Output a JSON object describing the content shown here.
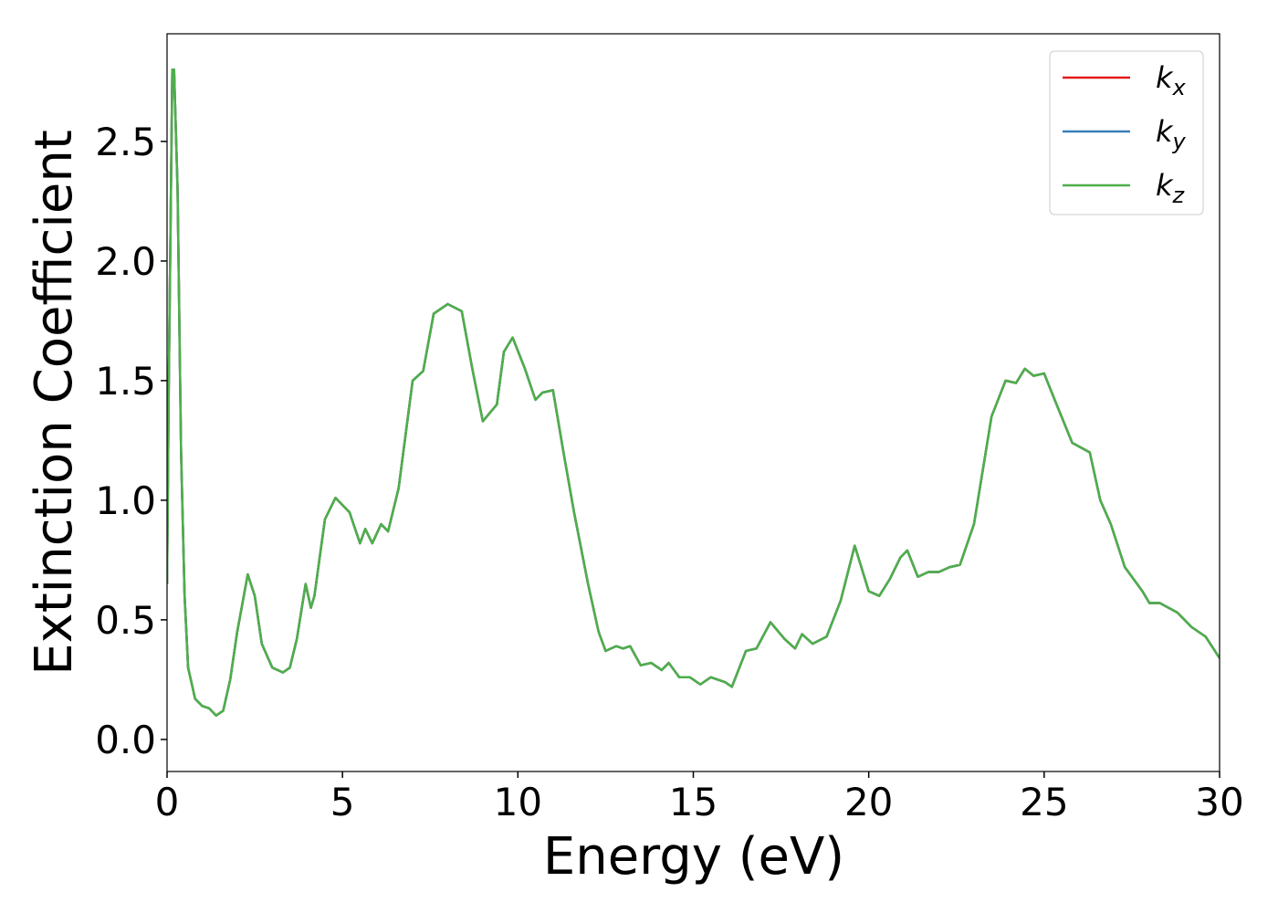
{
  "chart_data": {
    "type": "line",
    "xlabel": "Energy (eV)",
    "ylabel": "Extinction Coefficient",
    "x": [
      0,
      0.05,
      0.15,
      0.2,
      0.3,
      0.4,
      0.5,
      0.6,
      0.8,
      1.0,
      1.2,
      1.4,
      1.6,
      1.8,
      2.0,
      2.3,
      2.5,
      2.7,
      3.0,
      3.3,
      3.5,
      3.7,
      3.95,
      4.1,
      4.2,
      4.5,
      4.8,
      5.2,
      5.5,
      5.65,
      5.85,
      6.1,
      6.3,
      6.6,
      7.0,
      7.3,
      7.6,
      8.0,
      8.4,
      8.7,
      9.0,
      9.4,
      9.6,
      9.85,
      10.2,
      10.5,
      10.7,
      11.0,
      11.3,
      11.6,
      12.0,
      12.3,
      12.5,
      12.8,
      13.0,
      13.2,
      13.5,
      13.8,
      14.1,
      14.3,
      14.6,
      14.9,
      15.2,
      15.5,
      15.9,
      16.1,
      16.5,
      16.8,
      17.2,
      17.6,
      17.9,
      18.1,
      18.4,
      18.8,
      19.2,
      19.6,
      20.0,
      20.3,
      20.6,
      20.9,
      21.1,
      21.4,
      21.7,
      22.0,
      22.3,
      22.6,
      23.0,
      23.5,
      23.9,
      24.2,
      24.45,
      24.7,
      25.0,
      25.3,
      25.8,
      26.3,
      26.6,
      26.9,
      27.3,
      27.8,
      28.0,
      28.3,
      28.8,
      29.2,
      29.6,
      30.0
    ],
    "series": [
      {
        "name": "kx",
        "color": "#e41a1c",
        "values": [
          0.65,
          1.5,
          2.8,
          2.8,
          2.3,
          1.2,
          0.6,
          0.3,
          0.17,
          0.14,
          0.13,
          0.1,
          0.12,
          0.25,
          0.45,
          0.69,
          0.6,
          0.4,
          0.3,
          0.28,
          0.3,
          0.42,
          0.65,
          0.55,
          0.6,
          0.92,
          1.01,
          0.95,
          0.82,
          0.88,
          0.82,
          0.9,
          0.87,
          1.05,
          1.5,
          1.54,
          1.78,
          1.82,
          1.79,
          1.55,
          1.33,
          1.4,
          1.62,
          1.68,
          1.55,
          1.42,
          1.45,
          1.46,
          1.2,
          0.95,
          0.65,
          0.45,
          0.37,
          0.39,
          0.38,
          0.39,
          0.31,
          0.32,
          0.29,
          0.32,
          0.26,
          0.26,
          0.23,
          0.26,
          0.24,
          0.22,
          0.37,
          0.38,
          0.49,
          0.42,
          0.38,
          0.44,
          0.4,
          0.43,
          0.58,
          0.81,
          0.62,
          0.6,
          0.67,
          0.76,
          0.79,
          0.68,
          0.7,
          0.7,
          0.72,
          0.73,
          0.9,
          1.35,
          1.5,
          1.49,
          1.55,
          1.52,
          1.53,
          1.42,
          1.24,
          1.2,
          1.0,
          0.9,
          0.72,
          0.62,
          0.57,
          0.57,
          0.53,
          0.47,
          0.43,
          0.34
        ]
      },
      {
        "name": "ky",
        "color": "#377eb8",
        "values": [
          0.65,
          1.5,
          2.8,
          2.8,
          2.3,
          1.2,
          0.6,
          0.3,
          0.17,
          0.14,
          0.13,
          0.1,
          0.12,
          0.25,
          0.45,
          0.69,
          0.6,
          0.4,
          0.3,
          0.28,
          0.3,
          0.42,
          0.65,
          0.55,
          0.6,
          0.92,
          1.01,
          0.95,
          0.82,
          0.88,
          0.82,
          0.9,
          0.87,
          1.05,
          1.5,
          1.54,
          1.78,
          1.82,
          1.79,
          1.55,
          1.33,
          1.4,
          1.62,
          1.68,
          1.55,
          1.42,
          1.45,
          1.46,
          1.2,
          0.95,
          0.65,
          0.45,
          0.37,
          0.39,
          0.38,
          0.39,
          0.31,
          0.32,
          0.29,
          0.32,
          0.26,
          0.26,
          0.23,
          0.26,
          0.24,
          0.22,
          0.37,
          0.38,
          0.49,
          0.42,
          0.38,
          0.44,
          0.4,
          0.43,
          0.58,
          0.81,
          0.62,
          0.6,
          0.67,
          0.76,
          0.79,
          0.68,
          0.7,
          0.7,
          0.72,
          0.73,
          0.9,
          1.35,
          1.5,
          1.49,
          1.55,
          1.52,
          1.53,
          1.42,
          1.24,
          1.2,
          1.0,
          0.9,
          0.72,
          0.62,
          0.57,
          0.57,
          0.53,
          0.47,
          0.43,
          0.34
        ]
      },
      {
        "name": "kz",
        "color": "#4daf4a",
        "values": [
          0.65,
          1.5,
          2.8,
          2.8,
          2.3,
          1.2,
          0.6,
          0.3,
          0.17,
          0.14,
          0.13,
          0.1,
          0.12,
          0.25,
          0.45,
          0.69,
          0.6,
          0.4,
          0.3,
          0.28,
          0.3,
          0.42,
          0.65,
          0.55,
          0.6,
          0.92,
          1.01,
          0.95,
          0.82,
          0.88,
          0.82,
          0.9,
          0.87,
          1.05,
          1.5,
          1.54,
          1.78,
          1.82,
          1.79,
          1.55,
          1.33,
          1.4,
          1.62,
          1.68,
          1.55,
          1.42,
          1.45,
          1.46,
          1.2,
          0.95,
          0.65,
          0.45,
          0.37,
          0.39,
          0.38,
          0.39,
          0.31,
          0.32,
          0.29,
          0.32,
          0.26,
          0.26,
          0.23,
          0.26,
          0.24,
          0.22,
          0.37,
          0.38,
          0.49,
          0.42,
          0.38,
          0.44,
          0.4,
          0.43,
          0.58,
          0.81,
          0.62,
          0.6,
          0.67,
          0.76,
          0.79,
          0.68,
          0.7,
          0.7,
          0.72,
          0.73,
          0.9,
          1.35,
          1.5,
          1.49,
          1.55,
          1.52,
          1.53,
          1.42,
          1.24,
          1.2,
          1.0,
          0.9,
          0.72,
          0.62,
          0.57,
          0.57,
          0.53,
          0.47,
          0.43,
          0.34
        ]
      }
    ],
    "xlim": [
      0,
      30
    ],
    "xticks": [
      0,
      5,
      10,
      15,
      20,
      25,
      30
    ],
    "ylim": [
      -0.134,
      2.95
    ],
    "yticks": [
      {
        "value": 0,
        "label": "0.0"
      },
      0.5,
      {
        "value": 1,
        "label": "1.0"
      },
      1.5,
      {
        "value": 2,
        "label": "2.0"
      },
      2.5
    ],
    "legend": "upper right",
    "grid": false
  }
}
